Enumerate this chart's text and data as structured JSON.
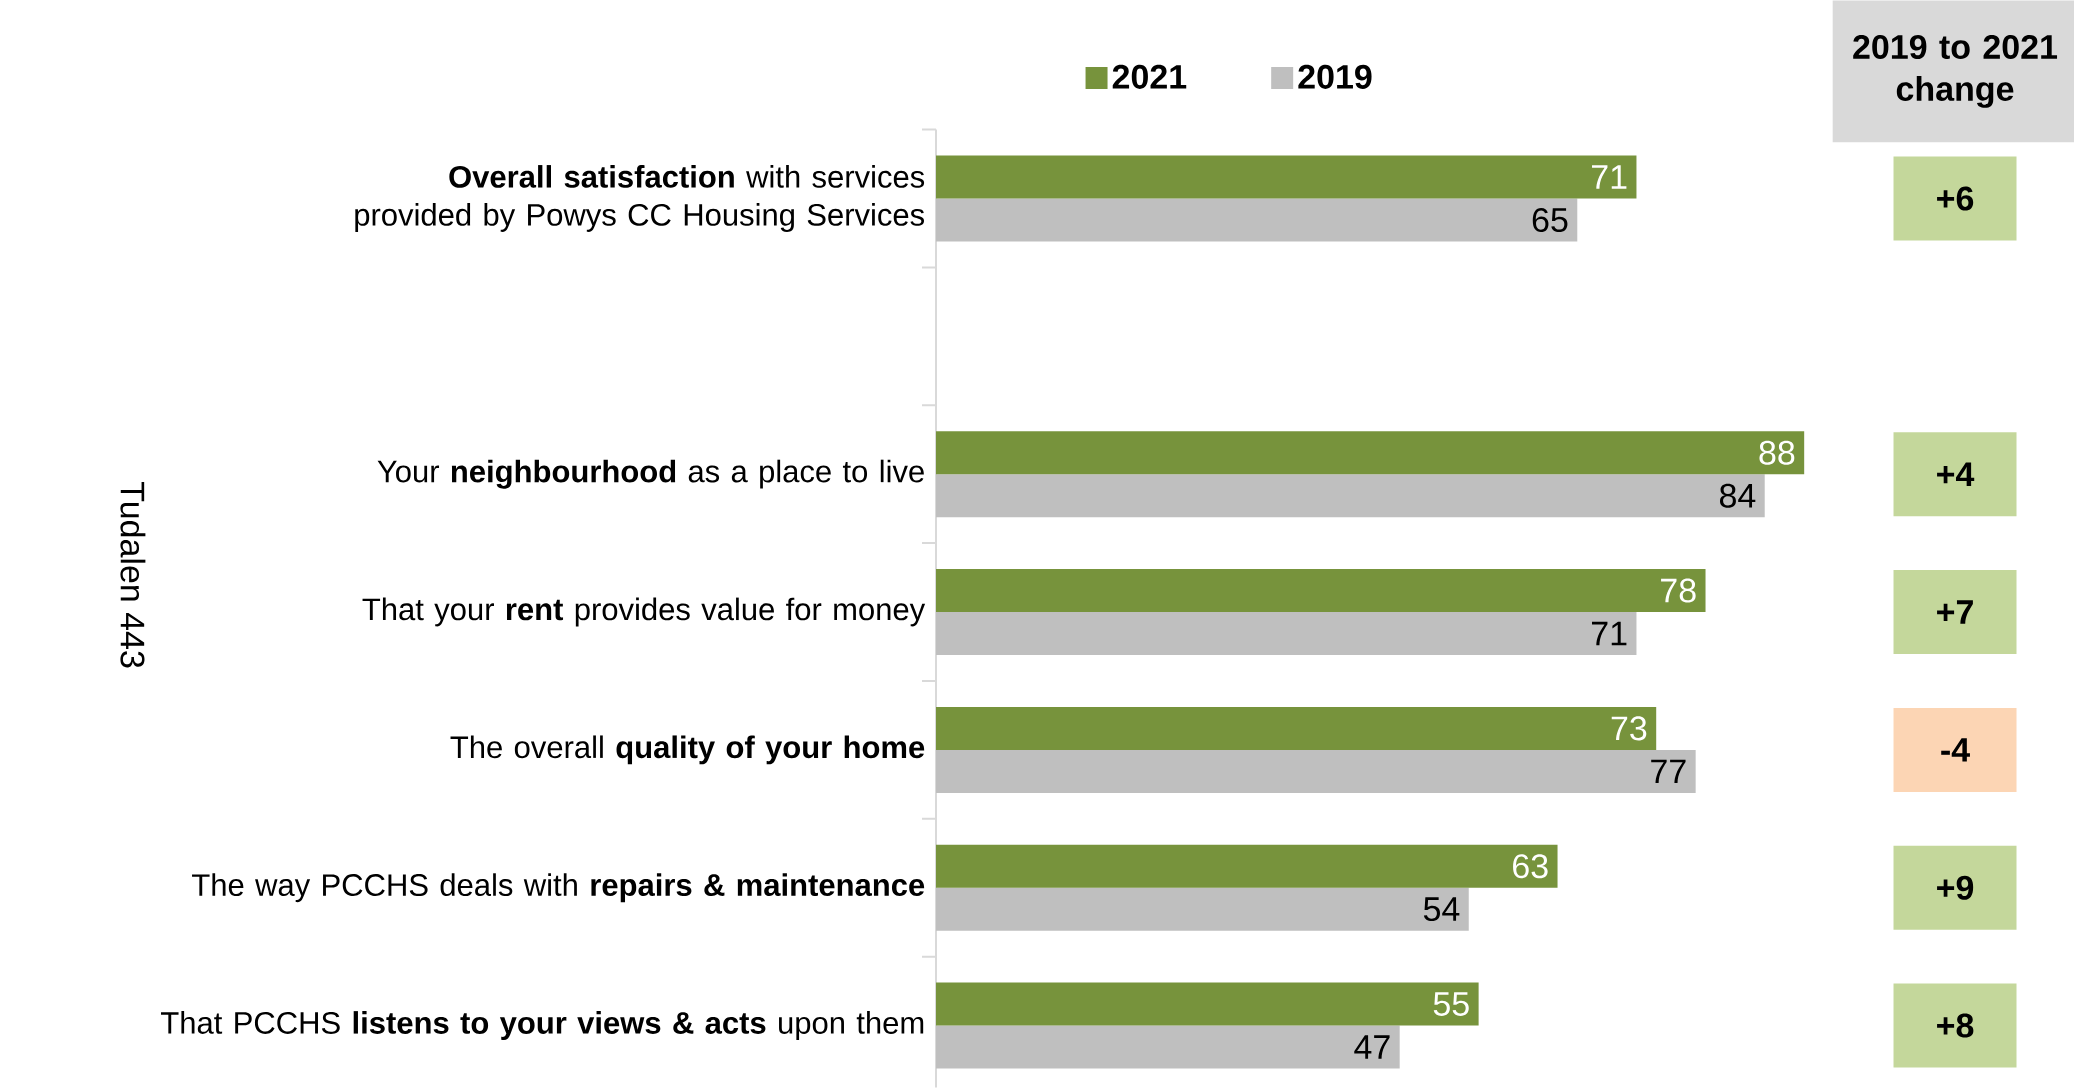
{
  "chart_data": [
    {
      "type": "bar",
      "orientation": "horizontal",
      "categories": [
        "**Overall satisfaction** with services provided by Powys CC Housing Services",
        null,
        "Your **neighbourhood** as a place to live",
        "That your **rent** provides value for money",
        "The overall **quality of your home**",
        "The way PCCHS deals with **repairs & maintenance**",
        "That PCCHS **listens to your views & acts** upon them"
      ],
      "series": [
        {
          "name": "2021",
          "color": "#77933c",
          "values": [
            71,
            null,
            88,
            78,
            73,
            63,
            55
          ]
        },
        {
          "name": "2019",
          "color": "#bfbfbf",
          "values": [
            65,
            null,
            84,
            71,
            77,
            54,
            47
          ]
        }
      ],
      "tick_labels": "y",
      "data_labels": true,
      "legend": "top",
      "annotations": [
        "Tudalen 443"
      ]
    },
    {
      "type": "other",
      "title": "2019 to 2021 change",
      "value_labels": [
        "+6",
        null,
        "+4",
        "+7",
        "-4",
        "+9",
        "+8"
      ],
      "colors": [
        "#c4d79b",
        null,
        "#c4d79b",
        "#c4d79b",
        "#fcd5b4",
        "#c4d79b",
        "#c4d79b"
      ]
    }
  ]
}
